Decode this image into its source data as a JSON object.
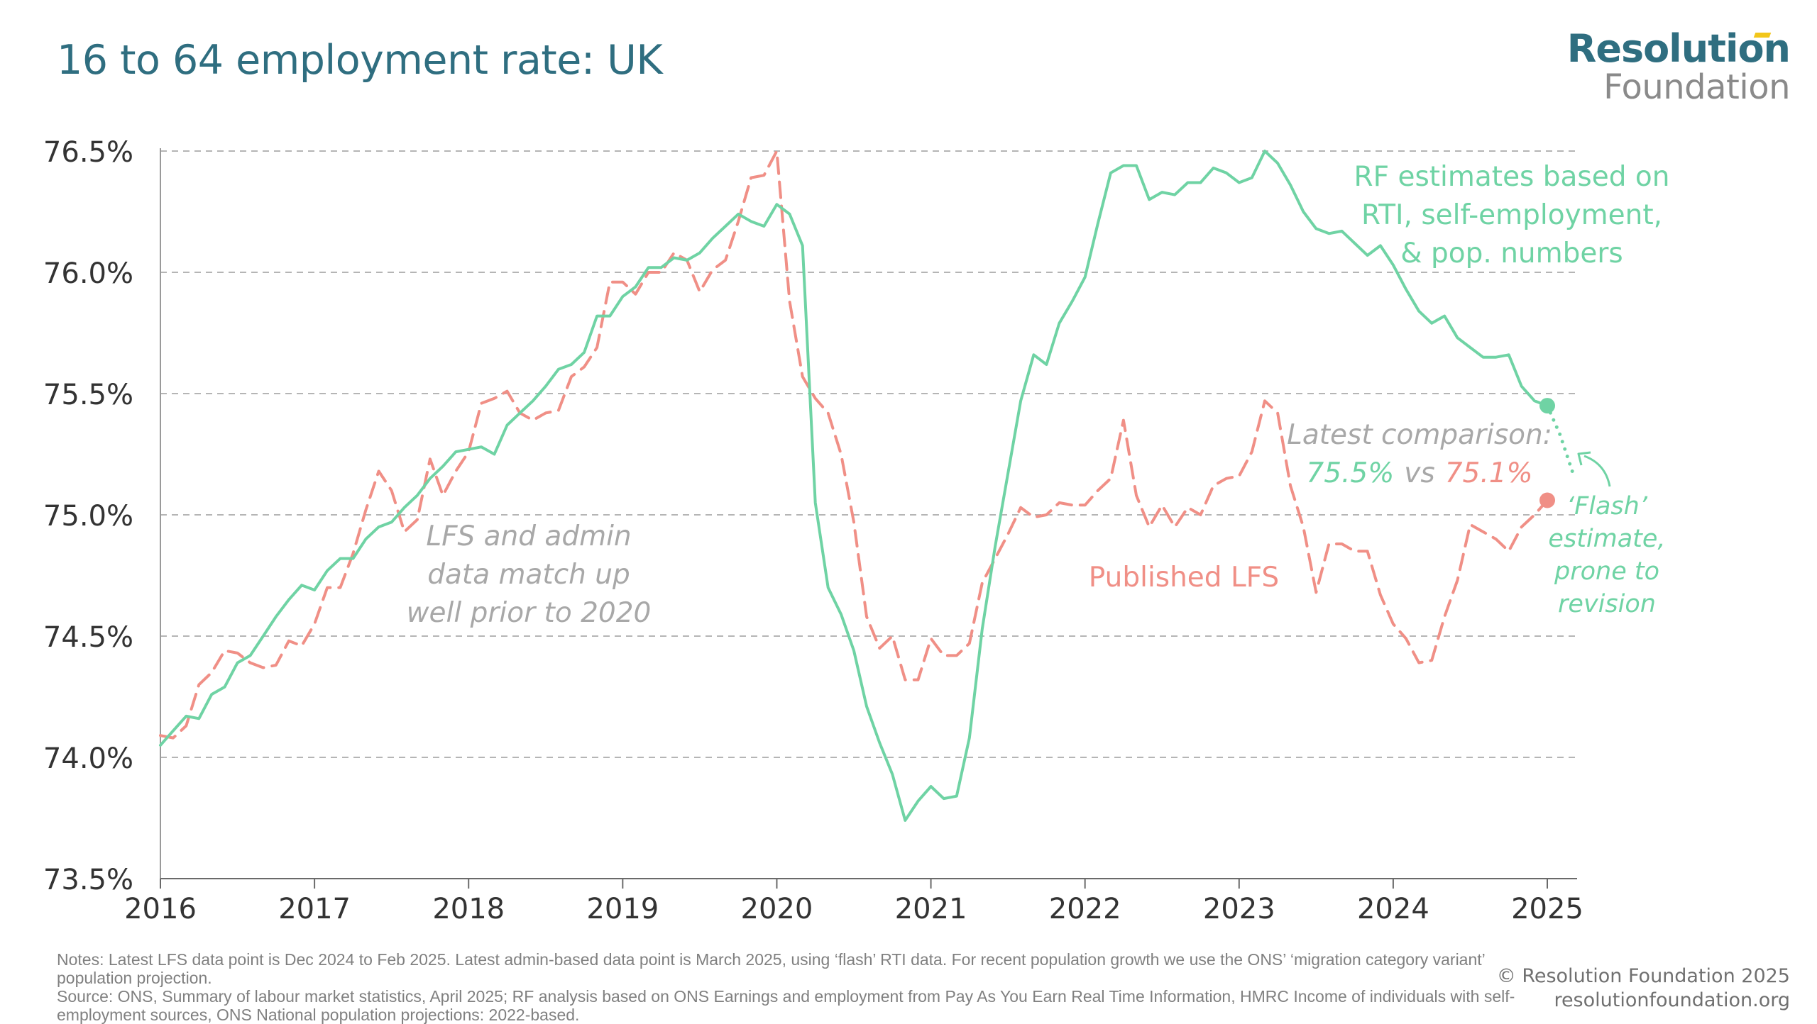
{
  "header": {
    "title": "16 to 64 employment rate: UK"
  },
  "logo": {
    "line1": "Resolution",
    "line2": "Foundation",
    "accent_color": "#f2c61a"
  },
  "chart_data": {
    "type": "line",
    "title": "16 to 64 employment rate: UK",
    "xlabel": "",
    "ylabel": "",
    "xlim": [
      2016.0,
      2025.25
    ],
    "ylim": [
      73.5,
      76.5
    ],
    "grid": "horizontal dashed",
    "x_ticks": [
      2016,
      2017,
      2018,
      2019,
      2020,
      2021,
      2022,
      2023,
      2024,
      2025
    ],
    "x_tick_labels": [
      "2016",
      "2017",
      "2018",
      "2019",
      "2020",
      "2021",
      "2022",
      "2023",
      "2024",
      "2025"
    ],
    "y_ticks": [
      73.5,
      74.0,
      74.5,
      75.0,
      75.5,
      76.0,
      76.5
    ],
    "y_tick_labels": [
      "73.5%",
      "74.0%",
      "74.5%",
      "75.0%",
      "75.5%",
      "76.0%",
      "76.5%"
    ],
    "series": [
      {
        "name": "Published LFS",
        "color": "#f08f86",
        "style": "dashed",
        "points": [
          [
            2016.0,
            74.09
          ],
          [
            2016.083,
            74.08
          ],
          [
            2016.167,
            74.13
          ],
          [
            2016.25,
            74.3
          ],
          [
            2016.333,
            74.35
          ],
          [
            2016.417,
            74.44
          ],
          [
            2016.5,
            74.43
          ],
          [
            2016.583,
            74.39
          ],
          [
            2016.667,
            74.37
          ],
          [
            2016.75,
            74.38
          ],
          [
            2016.833,
            74.48
          ],
          [
            2016.917,
            74.46
          ],
          [
            2017.0,
            74.55
          ],
          [
            2017.083,
            74.7
          ],
          [
            2017.167,
            74.7
          ],
          [
            2017.25,
            74.84
          ],
          [
            2017.333,
            75.02
          ],
          [
            2017.417,
            75.18
          ],
          [
            2017.5,
            75.1
          ],
          [
            2017.583,
            74.93
          ],
          [
            2017.667,
            74.98
          ],
          [
            2017.75,
            75.23
          ],
          [
            2017.833,
            75.08
          ],
          [
            2017.917,
            75.18
          ],
          [
            2018.0,
            75.26
          ],
          [
            2018.083,
            75.46
          ],
          [
            2018.167,
            75.48
          ],
          [
            2018.25,
            75.51
          ],
          [
            2018.333,
            75.42
          ],
          [
            2018.417,
            75.39
          ],
          [
            2018.5,
            75.42
          ],
          [
            2018.583,
            75.43
          ],
          [
            2018.667,
            75.57
          ],
          [
            2018.75,
            75.61
          ],
          [
            2018.833,
            75.69
          ],
          [
            2018.917,
            75.96
          ],
          [
            2019.0,
            75.96
          ],
          [
            2019.083,
            75.91
          ],
          [
            2019.167,
            76.0
          ],
          [
            2019.25,
            76.0
          ],
          [
            2019.333,
            76.08
          ],
          [
            2019.417,
            76.05
          ],
          [
            2019.5,
            75.92
          ],
          [
            2019.583,
            76.01
          ],
          [
            2019.667,
            76.05
          ],
          [
            2019.75,
            76.21
          ],
          [
            2019.833,
            76.39
          ],
          [
            2019.917,
            76.4
          ],
          [
            2020.0,
            76.5
          ],
          [
            2020.083,
            75.88
          ],
          [
            2020.167,
            75.57
          ],
          [
            2020.25,
            75.48
          ],
          [
            2020.333,
            75.42
          ],
          [
            2020.417,
            75.25
          ],
          [
            2020.5,
            74.97
          ],
          [
            2020.583,
            74.58
          ],
          [
            2020.667,
            74.45
          ],
          [
            2020.75,
            74.5
          ],
          [
            2020.833,
            74.32
          ],
          [
            2020.917,
            74.32
          ],
          [
            2021.0,
            74.49
          ],
          [
            2021.083,
            74.42
          ],
          [
            2021.167,
            74.42
          ],
          [
            2021.25,
            74.47
          ],
          [
            2021.333,
            74.72
          ],
          [
            2021.417,
            74.82
          ],
          [
            2021.5,
            74.92
          ],
          [
            2021.583,
            75.03
          ],
          [
            2021.667,
            74.99
          ],
          [
            2021.75,
            75.0
          ],
          [
            2021.833,
            75.05
          ],
          [
            2021.917,
            75.04
          ],
          [
            2022.0,
            75.04
          ],
          [
            2022.083,
            75.1
          ],
          [
            2022.167,
            75.15
          ],
          [
            2022.25,
            75.39
          ],
          [
            2022.333,
            75.08
          ],
          [
            2022.417,
            74.95
          ],
          [
            2022.5,
            75.04
          ],
          [
            2022.583,
            74.95
          ],
          [
            2022.667,
            75.03
          ],
          [
            2022.75,
            75.0
          ],
          [
            2022.833,
            75.12
          ],
          [
            2022.917,
            75.15
          ],
          [
            2023.0,
            75.16
          ],
          [
            2023.083,
            75.26
          ],
          [
            2023.167,
            75.47
          ],
          [
            2023.25,
            75.42
          ],
          [
            2023.333,
            75.12
          ],
          [
            2023.417,
            74.95
          ],
          [
            2023.5,
            74.68
          ],
          [
            2023.583,
            74.88
          ],
          [
            2023.667,
            74.88
          ],
          [
            2023.75,
            74.85
          ],
          [
            2023.833,
            74.85
          ],
          [
            2023.917,
            74.67
          ],
          [
            2024.0,
            74.55
          ],
          [
            2024.083,
            74.49
          ],
          [
            2024.167,
            74.39
          ],
          [
            2024.25,
            74.4
          ],
          [
            2024.333,
            74.58
          ],
          [
            2024.417,
            74.73
          ],
          [
            2024.5,
            74.96
          ],
          [
            2024.583,
            74.93
          ],
          [
            2024.667,
            74.9
          ],
          [
            2024.75,
            74.85
          ],
          [
            2024.833,
            74.95
          ],
          [
            2024.917,
            75.0
          ],
          [
            2025.0,
            75.06
          ]
        ]
      },
      {
        "name": "RF estimates based on RTI, self-employment, & pop. numbers",
        "color": "#6fd3a4",
        "style": "solid",
        "points": [
          [
            2016.0,
            74.05
          ],
          [
            2016.083,
            74.11
          ],
          [
            2016.167,
            74.17
          ],
          [
            2016.25,
            74.16
          ],
          [
            2016.333,
            74.26
          ],
          [
            2016.417,
            74.29
          ],
          [
            2016.5,
            74.39
          ],
          [
            2016.583,
            74.42
          ],
          [
            2016.667,
            74.5
          ],
          [
            2016.75,
            74.58
          ],
          [
            2016.833,
            74.65
          ],
          [
            2016.917,
            74.71
          ],
          [
            2017.0,
            74.69
          ],
          [
            2017.083,
            74.77
          ],
          [
            2017.167,
            74.82
          ],
          [
            2017.25,
            74.82
          ],
          [
            2017.333,
            74.9
          ],
          [
            2017.417,
            74.95
          ],
          [
            2017.5,
            74.97
          ],
          [
            2017.583,
            75.03
          ],
          [
            2017.667,
            75.08
          ],
          [
            2017.75,
            75.15
          ],
          [
            2017.833,
            75.2
          ],
          [
            2017.917,
            75.26
          ],
          [
            2018.0,
            75.27
          ],
          [
            2018.083,
            75.28
          ],
          [
            2018.167,
            75.25
          ],
          [
            2018.25,
            75.37
          ],
          [
            2018.333,
            75.42
          ],
          [
            2018.417,
            75.47
          ],
          [
            2018.5,
            75.53
          ],
          [
            2018.583,
            75.6
          ],
          [
            2018.667,
            75.62
          ],
          [
            2018.75,
            75.67
          ],
          [
            2018.833,
            75.82
          ],
          [
            2018.917,
            75.82
          ],
          [
            2019.0,
            75.9
          ],
          [
            2019.083,
            75.94
          ],
          [
            2019.167,
            76.02
          ],
          [
            2019.25,
            76.02
          ],
          [
            2019.333,
            76.06
          ],
          [
            2019.417,
            76.05
          ],
          [
            2019.5,
            76.08
          ],
          [
            2019.583,
            76.14
          ],
          [
            2019.667,
            76.19
          ],
          [
            2019.75,
            76.24
          ],
          [
            2019.833,
            76.21
          ],
          [
            2019.917,
            76.19
          ],
          [
            2020.0,
            76.28
          ],
          [
            2020.083,
            76.24
          ],
          [
            2020.167,
            76.11
          ],
          [
            2020.25,
            75.05
          ],
          [
            2020.333,
            74.7
          ],
          [
            2020.417,
            74.59
          ],
          [
            2020.5,
            74.44
          ],
          [
            2020.583,
            74.21
          ],
          [
            2020.667,
            74.06
          ],
          [
            2020.75,
            73.93
          ],
          [
            2020.833,
            73.74
          ],
          [
            2020.917,
            73.82
          ],
          [
            2021.0,
            73.88
          ],
          [
            2021.083,
            73.83
          ],
          [
            2021.167,
            73.84
          ],
          [
            2021.25,
            74.08
          ],
          [
            2021.333,
            74.53
          ],
          [
            2021.417,
            74.87
          ],
          [
            2021.5,
            75.17
          ],
          [
            2021.583,
            75.47
          ],
          [
            2021.667,
            75.66
          ],
          [
            2021.75,
            75.62
          ],
          [
            2021.833,
            75.79
          ],
          [
            2021.917,
            75.88
          ],
          [
            2022.0,
            75.98
          ],
          [
            2022.083,
            76.2
          ],
          [
            2022.167,
            76.41
          ],
          [
            2022.25,
            76.44
          ],
          [
            2022.333,
            76.44
          ],
          [
            2022.417,
            76.3
          ],
          [
            2022.5,
            76.33
          ],
          [
            2022.583,
            76.32
          ],
          [
            2022.667,
            76.37
          ],
          [
            2022.75,
            76.37
          ],
          [
            2022.833,
            76.43
          ],
          [
            2022.917,
            76.41
          ],
          [
            2023.0,
            76.37
          ],
          [
            2023.083,
            76.39
          ],
          [
            2023.167,
            76.5
          ],
          [
            2023.25,
            76.45
          ],
          [
            2023.333,
            76.36
          ],
          [
            2023.417,
            76.25
          ],
          [
            2023.5,
            76.18
          ],
          [
            2023.583,
            76.16
          ],
          [
            2023.667,
            76.17
          ],
          [
            2023.75,
            76.12
          ],
          [
            2023.833,
            76.07
          ],
          [
            2023.917,
            76.11
          ],
          [
            2024.0,
            76.03
          ],
          [
            2024.083,
            75.93
          ],
          [
            2024.167,
            75.84
          ],
          [
            2024.25,
            75.79
          ],
          [
            2024.333,
            75.82
          ],
          [
            2024.417,
            75.73
          ],
          [
            2024.5,
            75.69
          ],
          [
            2024.583,
            75.65
          ],
          [
            2024.667,
            75.65
          ],
          [
            2024.75,
            75.66
          ],
          [
            2024.833,
            75.53
          ],
          [
            2024.917,
            75.47
          ],
          [
            2025.0,
            75.45
          ]
        ],
        "flash_extension": [
          [
            2025.0,
            75.45
          ],
          [
            2025.083,
            75.33
          ],
          [
            2025.167,
            75.17
          ]
        ]
      }
    ],
    "endpoints": [
      {
        "series": "RF estimates based on RTI, self-employment, & pop. numbers",
        "x": 2025.0,
        "y": 75.45,
        "color": "#6fd3a4"
      },
      {
        "series": "Published LFS",
        "x": 2025.0,
        "y": 75.06,
        "color": "#f08f86"
      }
    ],
    "annotations": {
      "rf_label": [
        "RF estimates based on",
        "RTI, self-employment,",
        "& pop. numbers"
      ],
      "lfs_label": "Published LFS",
      "match_label": [
        "LFS and admin",
        "data match up",
        "well prior to 2020"
      ],
      "latest_title": "Latest comparison:",
      "latest_rf": "75.5%",
      "latest_vs": "vs",
      "latest_lfs": "75.1%",
      "flash_label": [
        "‘Flash’",
        "estimate,",
        "prone to",
        "revision"
      ]
    },
    "colors": {
      "rf": "#6fd3a4",
      "lfs": "#f08f86",
      "annotation_grey": "#a8a8a8",
      "axis_text": "#333333",
      "grid": "#b5b5b5"
    }
  },
  "footer": {
    "notes": "Notes: Latest LFS data point is Dec 2024 to Feb 2025. Latest admin-based data point is March 2025, using ‘flash’ RTI data. For recent population growth we use the ONS’ ‘migration category variant’ population projection.",
    "source": "Source: ONS, Summary of labour market statistics, April 2025; RF analysis based on ONS Earnings and employment from Pay As You Earn Real Time Information, HMRC Income of individuals with self-employment sources, ONS National population projections: 2022-based.",
    "copyright": "© Resolution Foundation 2025",
    "website": "resolutionfoundation.org"
  }
}
